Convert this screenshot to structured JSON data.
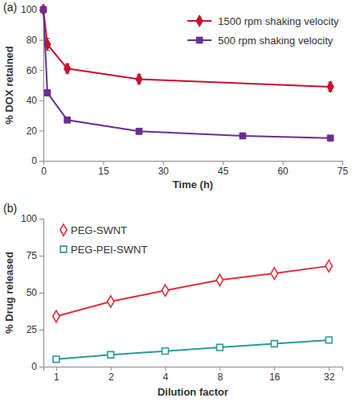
{
  "chart_data": [
    {
      "type": "line",
      "title": "(a)",
      "x_label": "Time (h)",
      "y_label": "% DOX retained",
      "xlim": [
        0,
        75
      ],
      "xticks": [
        0,
        15,
        30,
        45,
        60,
        75
      ],
      "ylim": [
        0,
        100
      ],
      "yticks": [
        0,
        20,
        40,
        60,
        80,
        100
      ],
      "legend": "top-right",
      "series": [
        {
          "name": "1500 rpm shaking velocity",
          "color": "#c8102e",
          "marker": "diamond",
          "line_style": "solid",
          "x": [
            0,
            1,
            6,
            24,
            72
          ],
          "values": [
            100,
            77,
            61,
            54,
            49
          ],
          "errors": [
            1,
            4,
            3,
            3,
            3
          ]
        },
        {
          "name": "500 rpm shaking velocity",
          "color": "#6b2d8f",
          "marker": "square",
          "line_style": "solid",
          "x": [
            0,
            1,
            6,
            24,
            50,
            72
          ],
          "values": [
            100,
            45,
            27,
            19.5,
            16.5,
            15
          ],
          "errors": [
            1,
            2,
            1,
            0.7,
            0.7,
            0.7
          ]
        }
      ]
    },
    {
      "type": "line",
      "title": "(b)",
      "x_label": "Dilution factor",
      "y_label": "% Drug released",
      "log": "x",
      "xlim": [
        0.85,
        38
      ],
      "xticks": [
        1,
        2,
        4,
        8,
        16,
        32
      ],
      "ylim": [
        0,
        100
      ],
      "yticks": [
        0,
        25,
        50,
        75,
        100
      ],
      "legend": "top-left",
      "series": [
        {
          "name": "PEG-SWNT",
          "color": "#e0303a",
          "marker": "open-diamond",
          "line_style": "solid",
          "x": [
            1,
            2,
            4,
            8,
            16,
            32
          ],
          "values": [
            34,
            44,
            51.5,
            58.5,
            63,
            68
          ]
        },
        {
          "name": "PEG-PEI-SWNT",
          "color": "#2a9a9a",
          "marker": "open-square",
          "line_style": "solid",
          "x": [
            1,
            2,
            4,
            8,
            16,
            32
          ],
          "values": [
            5,
            8,
            10.5,
            13,
            15.5,
            18
          ]
        }
      ]
    }
  ]
}
